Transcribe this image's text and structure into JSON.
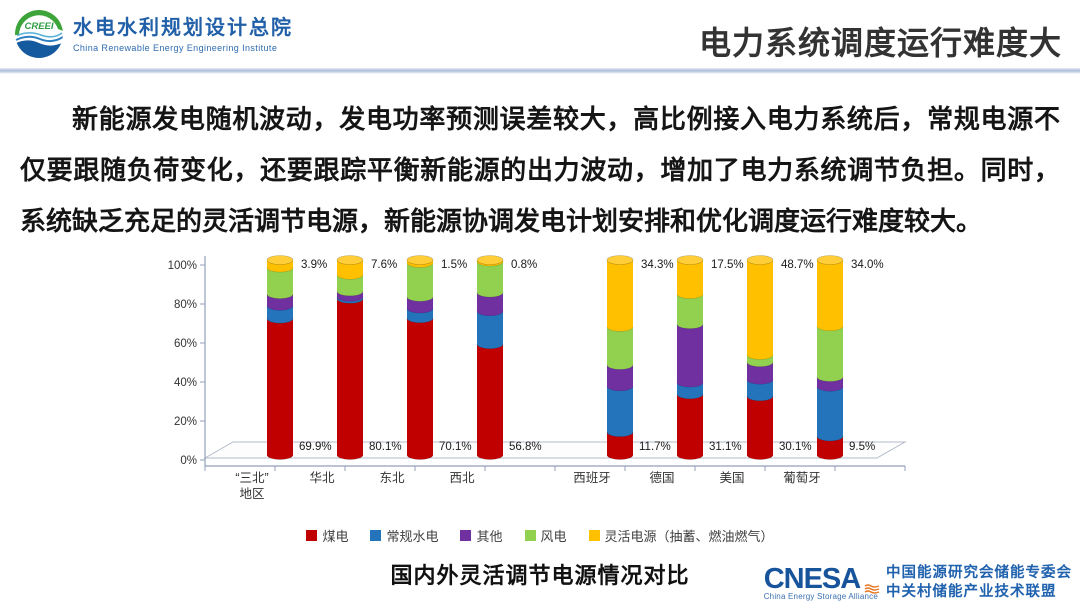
{
  "header": {
    "logo": {
      "acronym": "CREEI",
      "org_name_cn": "水电水利规划设计总院",
      "org_name_en": "China Renewable Energy Engineering Institute"
    },
    "slide_title": "电力系统调度运行难度大"
  },
  "body": {
    "lines": [
      "新能源发电随机波动，发电功率预测误差较大，高比例接入电力系统后，常规电源不",
      "仅要跟随负荷变化，还要跟踪平衡新能源的出力波动，增加了电力系统调节负担。同时，",
      "系统缺乏充足的灵活调节电源，新能源协调发电计划安排和优化调度运行难度较大。"
    ]
  },
  "chart_data": {
    "type": "bar",
    "subtype": "stacked-3d-cylinder",
    "caption": "国内外灵活调节电源情况对比",
    "unit": "%",
    "categories": [
      "“三北”地区",
      "华北",
      "东北",
      "西北",
      "西班牙",
      "德国",
      "美国",
      "葡萄牙"
    ],
    "category_label_lines": [
      [
        "“三北”",
        "地区"
      ],
      [
        "华北"
      ],
      [
        "东北"
      ],
      [
        "西北"
      ],
      [
        "西班牙"
      ],
      [
        "德国"
      ],
      [
        "美国"
      ],
      [
        "葡萄牙"
      ]
    ],
    "series": [
      {
        "name": "煤电",
        "color": "#C00000",
        "values": [
          69.9,
          80.1,
          70.1,
          56.8,
          11.7,
          31.1,
          30.1,
          9.5
        ]
      },
      {
        "name": "常规水电",
        "color": "#2374BB",
        "values": [
          6.6,
          1.0,
          5.0,
          16.9,
          23.5,
          6.0,
          8.5,
          25.5
        ]
      },
      {
        "name": "其他",
        "color": "#7030A0",
        "values": [
          6.0,
          2.8,
          6.0,
          9.6,
          11.0,
          30.0,
          9.0,
          5.0
        ]
      },
      {
        "name": "风电",
        "color": "#92D050",
        "values": [
          13.6,
          8.5,
          17.4,
          15.9,
          19.5,
          15.4,
          3.7,
          26.0
        ]
      },
      {
        "name": "灵活电源（抽蓄、燃油燃气）",
        "color": "#FFC000",
        "values": [
          3.9,
          7.6,
          1.5,
          0.8,
          34.3,
          17.5,
          48.7,
          34.0
        ]
      }
    ],
    "data_labels": {
      "bottom": {
        "series": "煤电",
        "values": [
          "69.9%",
          "80.1%",
          "70.1%",
          "56.8%",
          "11.7%",
          "31.1%",
          "30.1%",
          "9.5%"
        ]
      },
      "top": {
        "series": "灵活电源（抽蓄、燃油燃气）",
        "values": [
          "3.9%",
          "7.6%",
          "1.5%",
          "0.8%",
          "34.3%",
          "17.5%",
          "48.7%",
          "34.0%"
        ]
      }
    },
    "y_axis": {
      "min": 0,
      "max": 100,
      "tick_step": 20,
      "tick_labels": [
        "0%",
        "20%",
        "40%",
        "60%",
        "80%",
        "100%"
      ]
    },
    "legend": {
      "position": "bottom",
      "items": [
        "煤电",
        "常规水电",
        "其他",
        "风电",
        "灵活电源（抽蓄、燃油燃气）"
      ]
    }
  },
  "footer": {
    "cnesa_acronym": "CNESA",
    "cnesa_subtitle": "China Energy Storage Alliance",
    "org_line1": "中国能源研究会储能专委会",
    "org_line2": "中关村储能产业技术联盟"
  }
}
